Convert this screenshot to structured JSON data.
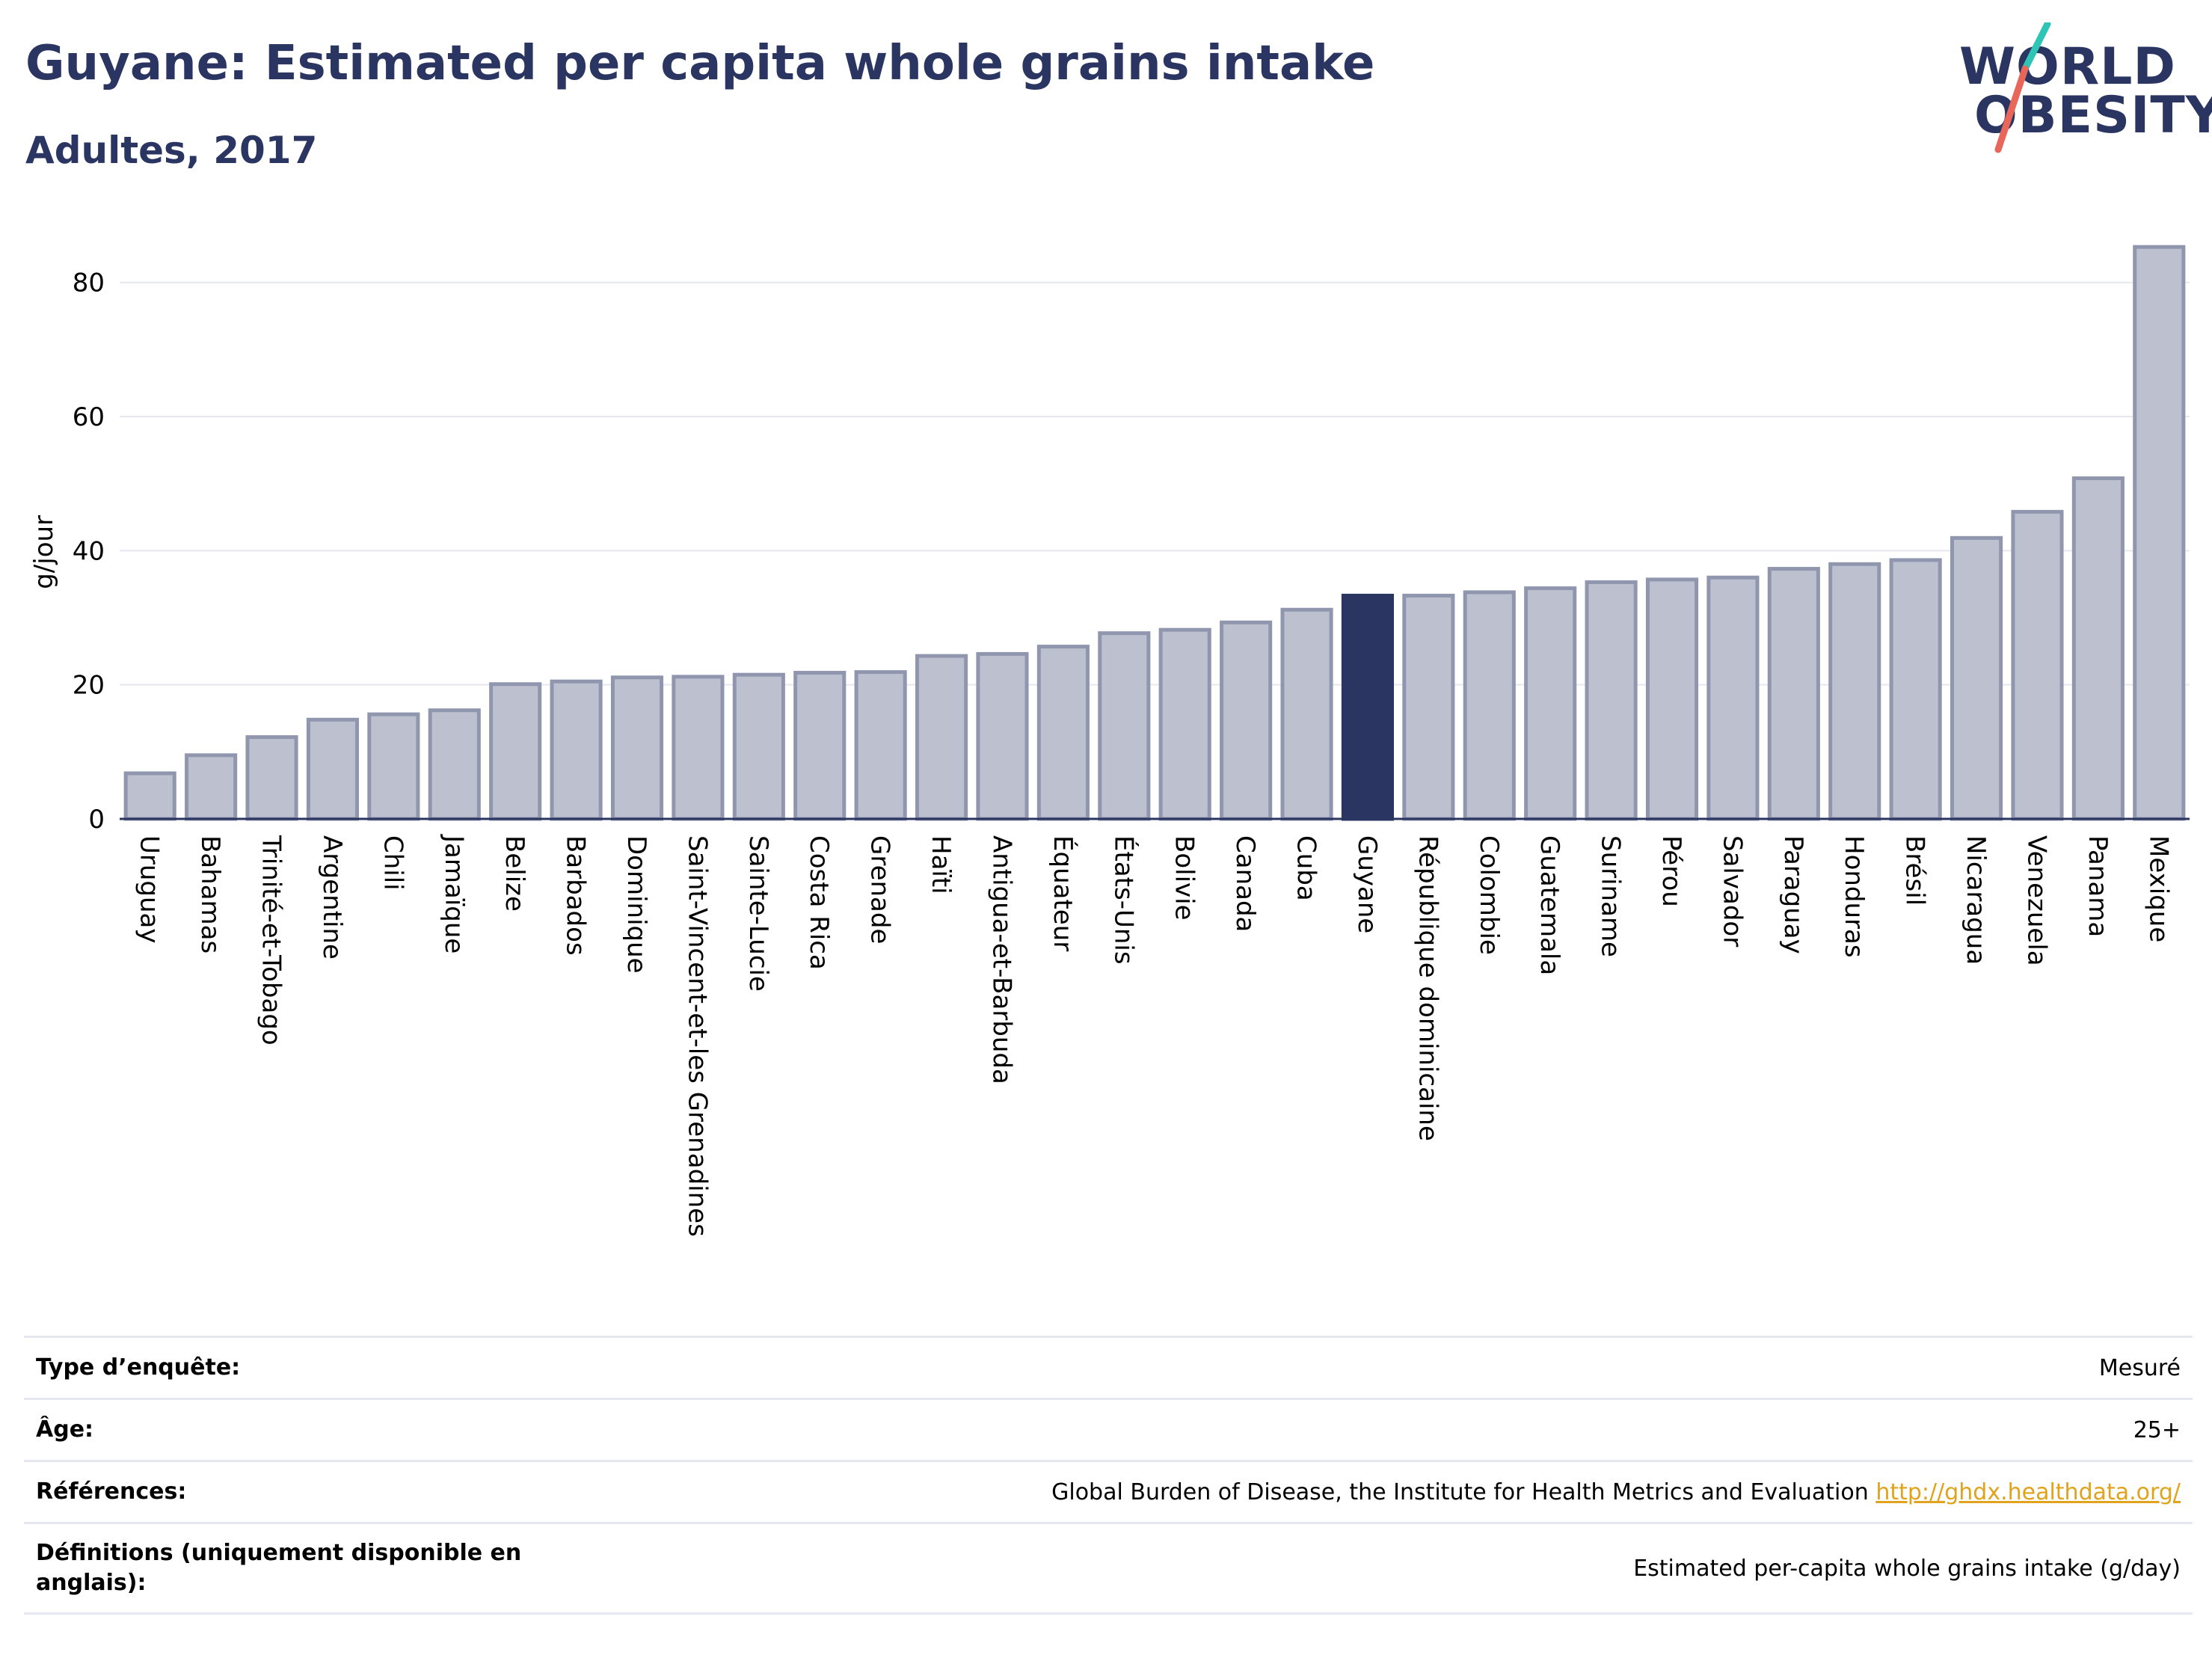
{
  "header": {
    "title": "Guyane: Estimated per capita whole grains intake",
    "subtitle": "Adultes, 2017"
  },
  "logo": {
    "line1": "WORLD",
    "line2": "OBESITY",
    "colors": {
      "text": "#2b3562",
      "slash_top": "#2ec4b6",
      "slash_bottom": "#e8675a"
    }
  },
  "colors": {
    "bar_default": "#bdc1cf",
    "bar_default_stroke": "#9096ae",
    "bar_highlight": "#2b3562",
    "grid": "#e6e8f0",
    "axis": "#2b3562"
  },
  "chart_data": {
    "type": "bar",
    "ylabel": "g/jour",
    "ylim": [
      0,
      88
    ],
    "yticks": [
      0,
      20,
      40,
      60,
      80
    ],
    "highlight": "Guyane",
    "grid": true,
    "categories": [
      "Uruguay",
      "Bahamas",
      "Trinité-et-Tobago",
      "Argentine",
      "Chili",
      "Jamaïque",
      "Belize",
      "Barbados",
      "Dominique",
      "Saint-Vincent-et-les Grenadines",
      "Sainte-Lucie",
      "Costa Rica",
      "Grenade",
      "Haïti",
      "Antigua-et-Barbuda",
      "Équateur",
      "États-Unis",
      "Bolivie",
      "Canada",
      "Cuba",
      "Guyane",
      "République dominicaine",
      "Colombie",
      "Guatemala",
      "Suriname",
      "Pérou",
      "Salvador",
      "Paraguay",
      "Honduras",
      "Brésil",
      "Nicaragua",
      "Venezuela",
      "Panama",
      "Mexique"
    ],
    "values": [
      6.8,
      9.5,
      12.2,
      14.8,
      15.6,
      16.2,
      20.1,
      20.5,
      21.1,
      21.2,
      21.5,
      21.8,
      21.9,
      24.3,
      24.6,
      25.7,
      27.7,
      28.2,
      29.3,
      31.2,
      33.3,
      33.3,
      33.8,
      34.4,
      35.3,
      35.7,
      36.0,
      37.3,
      38.0,
      38.6,
      41.9,
      45.8,
      50.8,
      85.3
    ]
  },
  "info": [
    {
      "label": "Type d’enquête:",
      "value": "Mesuré"
    },
    {
      "label": "Âge:",
      "value": "25+"
    },
    {
      "label": "Références:",
      "value": "Global Burden of Disease, the Institute for Health Metrics and Evaluation",
      "link": "http://ghdx.healthdata.org/"
    },
    {
      "label": "Définitions (uniquement disponible en anglais):",
      "value": "Estimated per-capita whole grains intake (g/day)"
    }
  ]
}
